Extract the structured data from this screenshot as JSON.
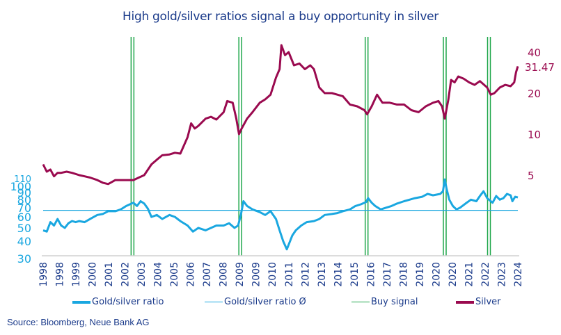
{
  "chart_data": {
    "type": "line",
    "title": "High gold/silver ratios signal a buy opportunity in silver",
    "x_range": [
      1998.0,
      2024.3
    ],
    "x_tick_labels": [
      "1998",
      "1998",
      "1999",
      "2000",
      "2001",
      "2002",
      "2003",
      "2004",
      "2005",
      "2006",
      "2007",
      "2008",
      "2009",
      "2009",
      "2010",
      "2011",
      "2012",
      "2013",
      "2014",
      "2015",
      "2016",
      "2017",
      "2018",
      "2019",
      "2020",
      "2020",
      "2021",
      "2022",
      "2023",
      "2024"
    ],
    "left_axis": {
      "scale": "log",
      "ylim": [
        30,
        110
      ],
      "tick_labels": [
        "110",
        "100",
        "90",
        "80",
        "70",
        "60",
        "50",
        "40",
        "30"
      ],
      "ticks": [
        110,
        100,
        90,
        80,
        70,
        60,
        50,
        40,
        30
      ],
      "color": "#1aa7e0"
    },
    "right_axis": {
      "scale": "log",
      "ticks": [
        40,
        20,
        10,
        5
      ],
      "tick_labels": [
        "40",
        "20",
        "10",
        "5"
      ],
      "last_value_label": "31.47",
      "last_value": 31.47,
      "color": "#9a0a4f"
    },
    "series": [
      {
        "name": "Gold/silver ratio",
        "axis": "left",
        "color": "#1aa7e0",
        "x": [
          1998.0,
          1998.2,
          1998.4,
          1998.6,
          1998.8,
          1999.0,
          1999.2,
          1999.4,
          1999.6,
          1999.8,
          2000.0,
          2000.3,
          2000.6,
          2001.0,
          2001.3,
          2001.6,
          2002.0,
          2002.3,
          2002.6,
          2002.9,
          2003.0,
          2003.2,
          2003.4,
          2003.6,
          2003.8,
          2004.0,
          2004.3,
          2004.6,
          2005.0,
          2005.3,
          2005.6,
          2006.0,
          2006.3,
          2006.6,
          2007.0,
          2007.3,
          2007.6,
          2008.0,
          2008.3,
          2008.6,
          2008.8,
          2008.95,
          2009.1,
          2009.3,
          2009.6,
          2010.0,
          2010.3,
          2010.6,
          2010.9,
          2011.1,
          2011.3,
          2011.5,
          2011.8,
          2012.0,
          2012.3,
          2012.6,
          2013.0,
          2013.3,
          2013.6,
          2014.0,
          2014.3,
          2014.6,
          2015.0,
          2015.3,
          2015.6,
          2015.9,
          2016.0,
          2016.2,
          2016.4,
          2016.7,
          2017.0,
          2017.3,
          2017.6,
          2018.0,
          2018.3,
          2018.6,
          2019.0,
          2019.3,
          2019.6,
          2020.0,
          2020.15,
          2020.25,
          2020.35,
          2020.5,
          2020.7,
          2020.9,
          2021.1,
          2021.4,
          2021.7,
          2022.0,
          2022.2,
          2022.4,
          2022.6,
          2022.9,
          2023.1,
          2023.3,
          2023.5,
          2023.7,
          2023.9,
          2024.0,
          2024.15,
          2024.3
        ],
        "values": [
          48,
          47,
          55,
          52,
          58,
          52,
          50,
          54,
          56,
          55,
          56,
          55,
          58,
          62,
          63,
          66,
          66,
          68,
          72,
          75,
          76,
          72,
          78,
          75,
          69,
          60,
          62,
          58,
          62,
          60,
          56,
          52,
          47,
          50,
          48,
          50,
          52,
          52,
          54,
          50,
          52,
          62,
          78,
          72,
          68,
          65,
          62,
          66,
          58,
          48,
          40,
          35,
          44,
          48,
          52,
          55,
          56,
          58,
          62,
          63,
          64,
          66,
          68,
          72,
          74,
          77,
          82,
          76,
          72,
          68,
          70,
          72,
          75,
          78,
          80,
          82,
          84,
          88,
          86,
          88,
          92,
          112,
          96,
          80,
          72,
          68,
          70,
          75,
          80,
          78,
          85,
          92,
          82,
          76,
          85,
          80,
          82,
          88,
          86,
          78,
          84,
          83
        ]
      },
      {
        "name": "Gold/silver ratio Ø",
        "axis": "left",
        "color": "#1aa7e0",
        "constant": 67
      },
      {
        "name": "Silver",
        "axis": "right",
        "color": "#9a0a4f",
        "x": [
          1998.0,
          1998.2,
          1998.4,
          1998.6,
          1998.8,
          1999.0,
          1999.3,
          1999.6,
          2000.0,
          2000.3,
          2000.6,
          2001.0,
          2001.3,
          2001.6,
          2002.0,
          2002.3,
          2002.6,
          2003.0,
          2003.3,
          2003.6,
          2004.0,
          2004.3,
          2004.6,
          2005.0,
          2005.3,
          2005.6,
          2006.0,
          2006.2,
          2006.4,
          2006.6,
          2007.0,
          2007.3,
          2007.6,
          2008.0,
          2008.2,
          2008.5,
          2008.7,
          2008.85,
          2009.0,
          2009.3,
          2009.6,
          2010.0,
          2010.3,
          2010.6,
          2010.9,
          2011.1,
          2011.2,
          2011.4,
          2011.6,
          2011.9,
          2012.2,
          2012.5,
          2012.8,
          2013.0,
          2013.3,
          2013.6,
          2014.0,
          2014.3,
          2014.6,
          2015.0,
          2015.4,
          2015.8,
          2015.95,
          2016.2,
          2016.5,
          2016.8,
          2017.2,
          2017.6,
          2018.0,
          2018.4,
          2018.8,
          2019.2,
          2019.6,
          2019.9,
          2020.1,
          2020.25,
          2020.45,
          2020.6,
          2020.8,
          2021.0,
          2021.3,
          2021.6,
          2021.9,
          2022.2,
          2022.6,
          2022.8,
          2023.0,
          2023.3,
          2023.6,
          2023.9,
          2024.1,
          2024.2,
          2024.3
        ],
        "values": [
          6.0,
          5.3,
          5.5,
          4.9,
          5.2,
          5.2,
          5.3,
          5.2,
          5.0,
          4.9,
          4.8,
          4.6,
          4.4,
          4.3,
          4.6,
          4.6,
          4.6,
          4.6,
          4.8,
          5.0,
          6.0,
          6.5,
          7.0,
          7.1,
          7.3,
          7.2,
          9.5,
          12.0,
          11.0,
          11.5,
          13.0,
          13.4,
          12.8,
          14.5,
          17.5,
          17.0,
          13.0,
          10.0,
          11.0,
          13.0,
          14.5,
          17.0,
          18.0,
          19.5,
          26.0,
          30.0,
          45.0,
          38.0,
          40.0,
          32.0,
          33.0,
          30.0,
          32.0,
          30.0,
          22.0,
          20.0,
          20.0,
          19.5,
          19.0,
          16.5,
          16.0,
          15.0,
          14.0,
          16.0,
          19.5,
          17.0,
          17.0,
          16.5,
          16.5,
          15.0,
          14.5,
          16.0,
          17.0,
          17.5,
          16.0,
          13.0,
          18.0,
          25.0,
          24.0,
          26.5,
          25.5,
          24.0,
          23.0,
          24.5,
          22.0,
          19.5,
          20.0,
          22.0,
          23.0,
          22.5,
          24.0,
          28.5,
          31.47
        ]
      }
    ],
    "buy_signals": [
      2002.95,
      2008.92,
      2015.92,
      2020.25,
      2022.7
    ],
    "legend": {
      "position": "bottom",
      "items": [
        {
          "label": "Gold/silver ratio",
          "color": "#1aa7e0",
          "style": "thick"
        },
        {
          "label": "Gold/silver ratio Ø",
          "color": "#1aa7e0",
          "style": "thin"
        },
        {
          "label": "Buy signal",
          "color": "#1ea64a",
          "style": "thin"
        },
        {
          "label": "Silver",
          "color": "#9a0a4f",
          "style": "thick"
        }
      ]
    },
    "source": "Source: Bloomberg, Neue Bank AG"
  }
}
